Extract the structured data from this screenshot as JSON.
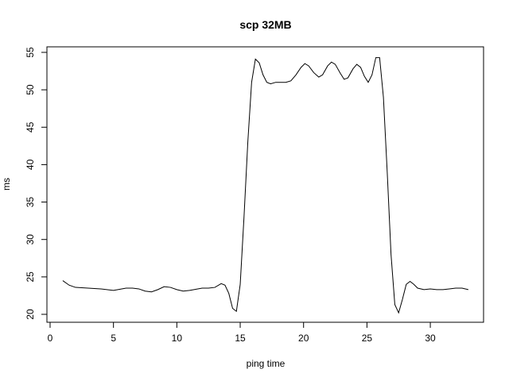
{
  "chart_data": {
    "type": "line",
    "title": "scp 32MB",
    "x_label": "ping time",
    "y_label": "ms",
    "x": [
      1,
      1.5,
      2,
      3,
      4,
      5,
      6,
      6.5,
      7,
      7.5,
      8,
      8.5,
      9,
      9.5,
      10,
      10.5,
      11,
      12,
      12.5,
      13,
      13.5,
      13.8,
      14.1,
      14.4,
      14.7,
      15,
      15.3,
      15.6,
      15.9,
      16.2,
      16.5,
      16.8,
      17.1,
      17.4,
      17.8,
      18.2,
      18.6,
      19,
      19.4,
      19.8,
      20.1,
      20.4,
      20.8,
      21.2,
      21.5,
      21.9,
      22.2,
      22.5,
      22.9,
      23.2,
      23.5,
      23.9,
      24.2,
      24.5,
      24.8,
      25.1,
      25.4,
      25.7,
      26,
      26.3,
      26.6,
      26.9,
      27.2,
      27.5,
      27.8,
      28.1,
      28.4,
      28.7,
      29,
      29.5,
      30,
      30.5,
      31,
      31.5,
      32,
      32.5,
      33
    ],
    "series": [
      {
        "name": "ms",
        "color": "#000000",
        "values": [
          24.5,
          23.9,
          23.6,
          23.5,
          23.4,
          23.2,
          23.5,
          23.5,
          23.4,
          23.1,
          23.0,
          23.3,
          23.7,
          23.6,
          23.3,
          23.1,
          23.2,
          23.5,
          23.5,
          23.6,
          24.1,
          23.9,
          22.8,
          20.8,
          20.4,
          24,
          33,
          43,
          51,
          54.1,
          53.6,
          52.0,
          51.0,
          50.8,
          51.0,
          51.0,
          51.0,
          51.2,
          52.0,
          53.0,
          53.5,
          53.2,
          52.3,
          51.7,
          52.0,
          53.2,
          53.7,
          53.4,
          52.2,
          51.4,
          51.6,
          52.8,
          53.4,
          53.0,
          51.8,
          51.0,
          52.0,
          54.3,
          54.3,
          49,
          39,
          28,
          21.3,
          20.2,
          22.0,
          24.0,
          24.4,
          24.0,
          23.5,
          23.3,
          23.4,
          23.3,
          23.3,
          23.4,
          23.5,
          23.5,
          23.3
        ]
      }
    ],
    "xlim": [
      -0.25,
      34.2
    ],
    "ylim": [
      18.94,
      55.74
    ],
    "xticks": [
      0,
      5,
      10,
      15,
      20,
      25,
      30
    ],
    "yticks": [
      20,
      25,
      30,
      35,
      40,
      45,
      50,
      55
    ]
  }
}
